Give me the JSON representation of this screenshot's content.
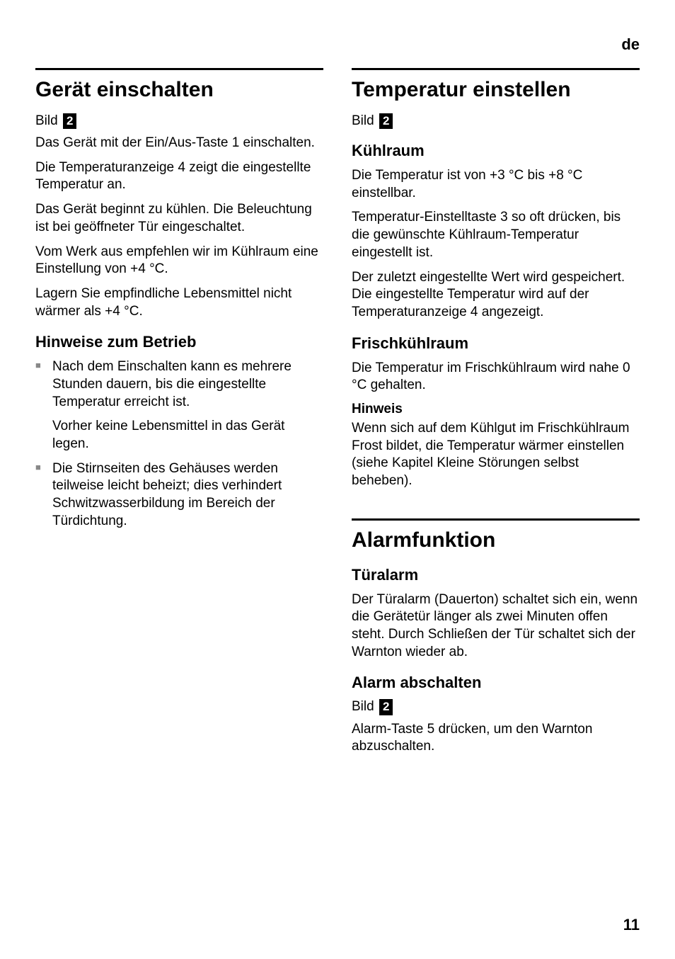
{
  "langHeader": "de",
  "pageNumber": "11",
  "colors": {
    "text": "#000000",
    "background": "#ffffff",
    "bullet": "#888888",
    "rule": "#000000"
  },
  "left": {
    "section1": {
      "heading": "Gerät einschalten",
      "bildLabel": "Bild",
      "bildNum": "2",
      "p1": "Das Gerät mit der Ein/Aus-Taste 1 einschalten.",
      "p2": "Die Temperaturanzeige 4 zeigt die eingestellte Temperatur an.",
      "p3": "Das Gerät beginnt zu kühlen. Die Beleuchtung ist bei geöffneter Tür eingeschaltet.",
      "p4": "Vom Werk aus empfehlen wir im Kühlraum eine Einstellung von +4 °C.",
      "p5": "Lagern Sie empfindliche Lebensmittel nicht wärmer als +4 °C.",
      "sub1": {
        "heading": "Hinweise zum Betrieb",
        "bullets": [
          {
            "text": "Nach dem Einschalten kann es mehrere Stunden dauern, bis die eingestellte Temperatur erreicht ist.",
            "sub": "Vorher keine Lebensmittel in das Gerät legen."
          },
          {
            "text": "Die Stirnseiten des Gehäuses werden teilweise leicht beheizt; dies verhindert Schwitzwasserbildung im Bereich der Türdichtung."
          }
        ]
      }
    }
  },
  "right": {
    "section1": {
      "heading": "Temperatur einstellen",
      "bildLabel": "Bild",
      "bildNum": "2",
      "sub1": {
        "heading": "Kühlraum",
        "p1": "Die Temperatur ist von +3 °C bis +8 °C einstellbar.",
        "p2": "Temperatur-Einstelltaste 3 so oft drücken, bis die gewünschte Kühlraum-Temperatur eingestellt ist.",
        "p3": "Der zuletzt eingestellte Wert wird gespeichert. Die eingestellte Temperatur wird auf der Temperaturanzeige 4 angezeigt."
      },
      "sub2": {
        "heading": "Frischkühlraum",
        "p1": "Die Temperatur im Frischkühlraum wird nahe 0 °C gehalten.",
        "noteLabel": "Hinweis",
        "noteText": "Wenn sich auf dem Kühlgut im Frischkühlraum Frost bildet, die Temperatur wärmer einstellen (siehe Kapitel Kleine Störungen selbst beheben)."
      }
    },
    "section2": {
      "heading": "Alarmfunktion",
      "sub1": {
        "heading": "Türalarm",
        "p1": "Der Türalarm (Dauerton) schaltet sich ein, wenn die Gerätetür länger als zwei Minuten offen steht. Durch Schließen der Tür schaltet sich der Warnton wieder ab."
      },
      "sub2": {
        "heading": "Alarm abschalten",
        "bildLabel": "Bild",
        "bildNum": "2",
        "p1": "Alarm-Taste 5 drücken, um den Warnton abzuschalten."
      }
    }
  }
}
